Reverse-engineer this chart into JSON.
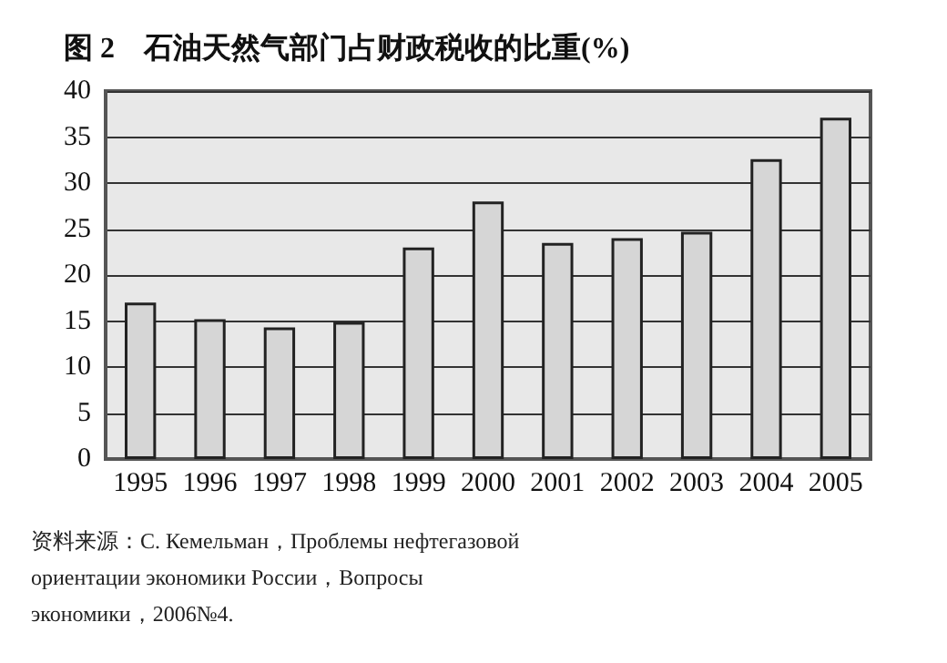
{
  "chart_data": {
    "type": "bar",
    "title": "图 2　石油天然气部门占财政税收的比重(%)",
    "categories": [
      "1995",
      "1996",
      "1997",
      "1998",
      "1999",
      "2000",
      "2001",
      "2002",
      "2003",
      "2004",
      "2005"
    ],
    "values": [
      17.0,
      15.2,
      14.3,
      14.9,
      23.0,
      28.0,
      23.5,
      24.0,
      24.7,
      32.6,
      37.1
    ],
    "color": "#d6d6d6",
    "ylim": [
      0,
      40
    ],
    "yticks": [
      0,
      5,
      10,
      15,
      20,
      25,
      30,
      35,
      40
    ],
    "grid": "y",
    "annotations": [
      "资料来源：С. Кемельман，Проблемы нефтегазовой ориентации экономики России，Вопросы экономики，2006№4."
    ]
  }
}
